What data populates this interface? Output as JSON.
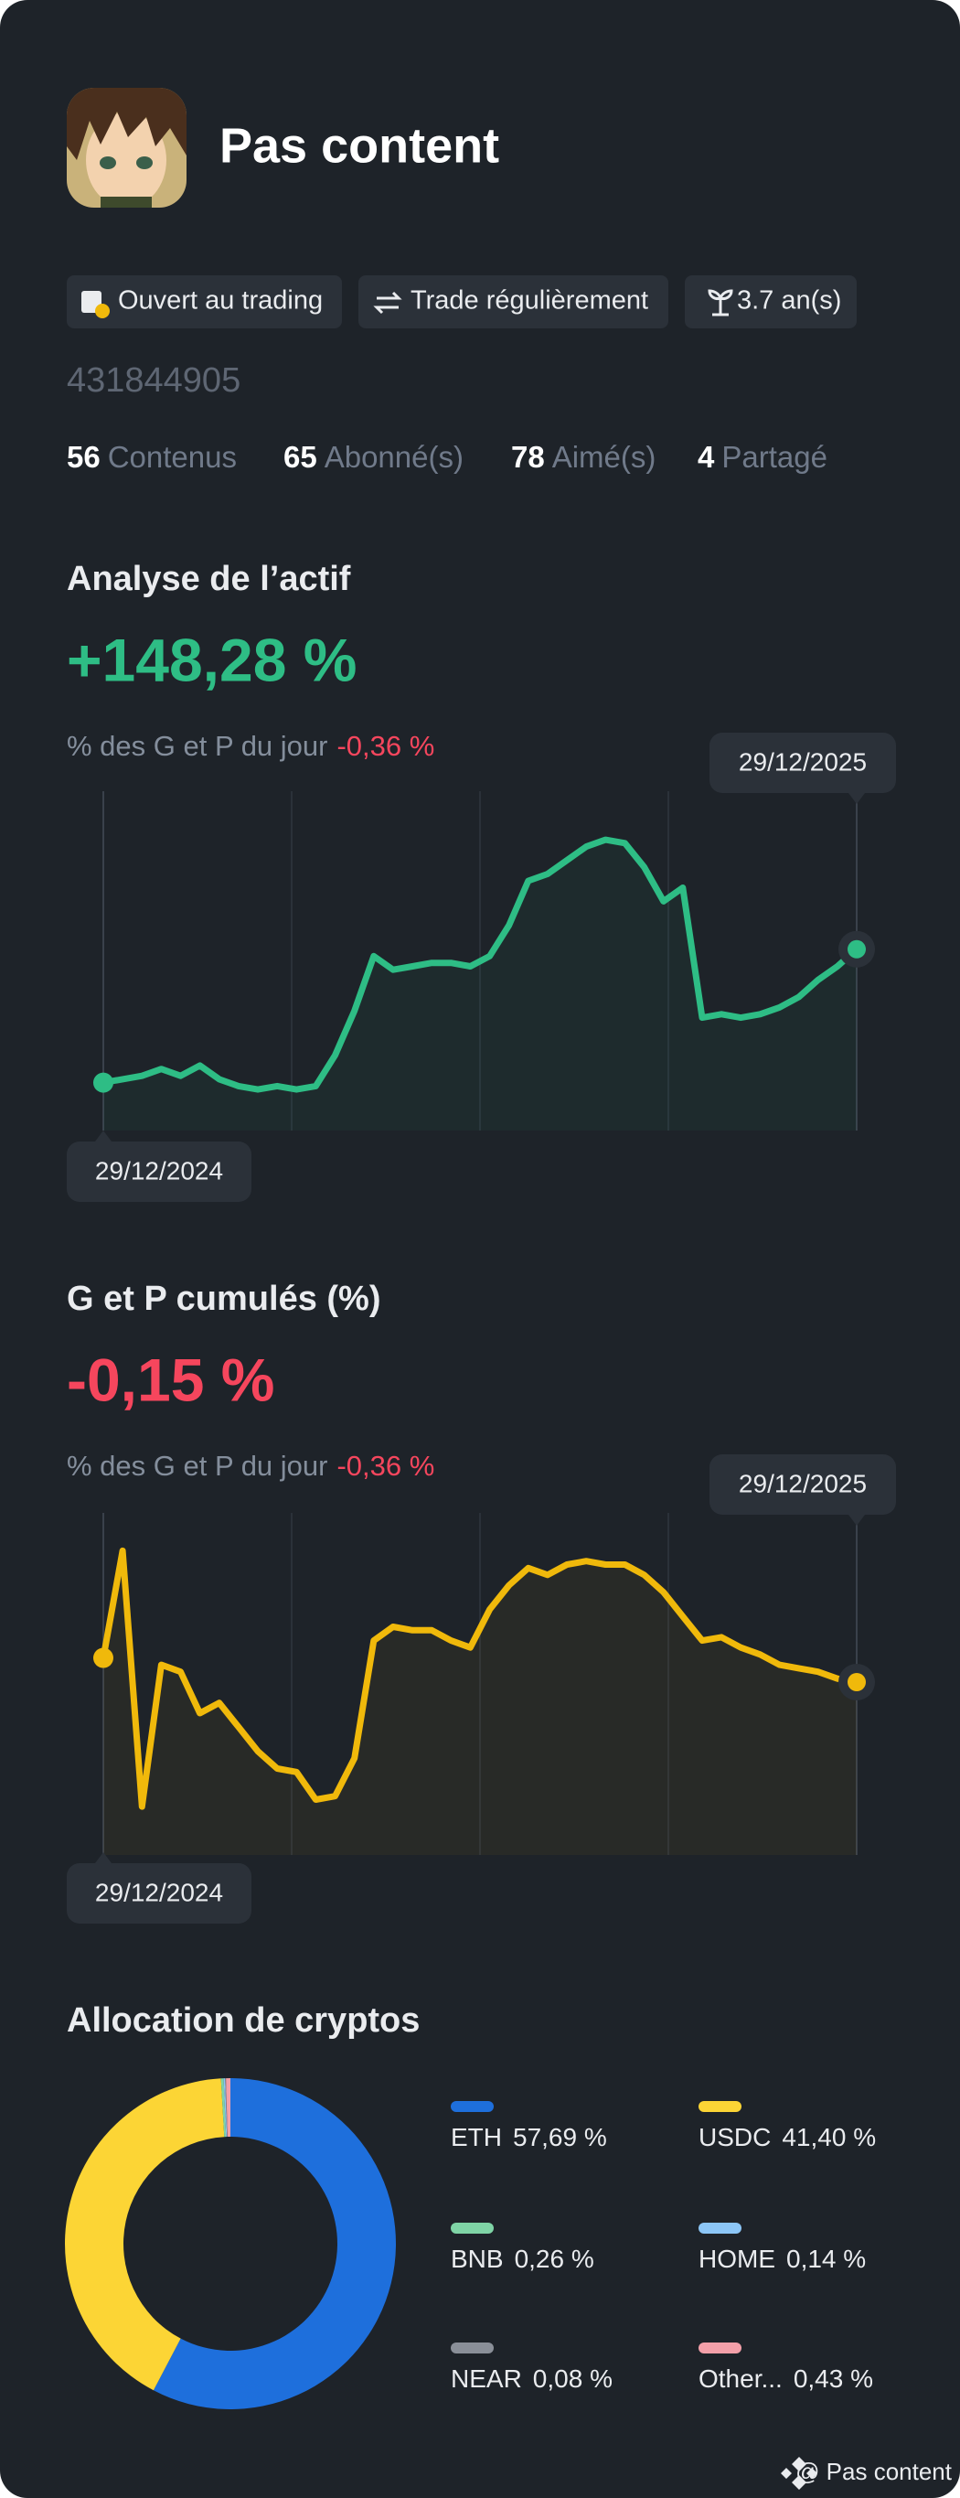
{
  "profile": {
    "name": "Pas content",
    "tags": [
      "Ouvert au trading",
      "Trade régulièrement",
      "3.7 an(s)"
    ],
    "id": "431844905",
    "stats": [
      {
        "value": 56,
        "label": "Contenus"
      },
      {
        "value": 65,
        "label": "Abonné(s)"
      },
      {
        "value": 78,
        "label": "Aimé(s)"
      },
      {
        "value": 4,
        "label": "Partagé"
      }
    ]
  },
  "chart_data": [
    {
      "type": "line",
      "title": "Analyse de l’actif",
      "headline": "+148,28 %",
      "subtitle": "% des G et P du jour",
      "subtitle_value": "-0,36 %",
      "start_label": "29/12/2024",
      "end_label": "29/12/2025",
      "color": "#2ebd85",
      "ylim": [
        0,
        100
      ],
      "values": [
        14,
        15,
        16,
        18,
        16,
        19,
        15,
        13,
        12,
        13,
        12,
        13,
        22,
        35,
        51,
        47,
        48,
        49,
        49,
        48,
        51,
        60,
        73,
        75,
        79,
        83,
        85,
        84,
        77,
        67,
        71,
        33,
        34,
        33,
        34,
        36,
        39,
        44,
        48,
        53
      ]
    },
    {
      "type": "line",
      "title": "G et P cumulés (%)",
      "headline": "-0,15 %",
      "subtitle": "% des G et P du jour",
      "subtitle_value": "-0,36 %",
      "start_label": "29/12/2024",
      "end_label": "29/12/2025",
      "color": "#f0b90b",
      "ylim": [
        0,
        100
      ],
      "values": [
        57,
        88,
        14,
        55,
        53,
        41,
        44,
        37,
        30,
        25,
        24,
        16,
        17,
        28,
        62,
        66,
        65,
        65,
        62,
        60,
        71,
        78,
        83,
        81,
        84,
        85,
        84,
        84,
        81,
        76,
        69,
        62,
        63,
        60,
        58,
        55,
        54,
        53,
        51,
        50
      ]
    },
    {
      "type": "donut",
      "title": "Allocation de cryptos",
      "categories": [
        "ETH",
        "USDC",
        "BNB",
        "HOME",
        "NEAR",
        "Other..."
      ],
      "values": [
        57.69,
        41.4,
        0.26,
        0.14,
        0.08,
        0.43
      ],
      "value_labels": [
        "57,69 %",
        "41,40 %",
        "0,26 %",
        "0,14 %",
        "0,08 %",
        "0,43 %"
      ],
      "colors": [
        "#1e6fdc",
        "#fcd535",
        "#7fd4a6",
        "#8cc6f6",
        "#8a8f98",
        "#f3a0a9"
      ]
    }
  ],
  "footer": "@ Pas content"
}
